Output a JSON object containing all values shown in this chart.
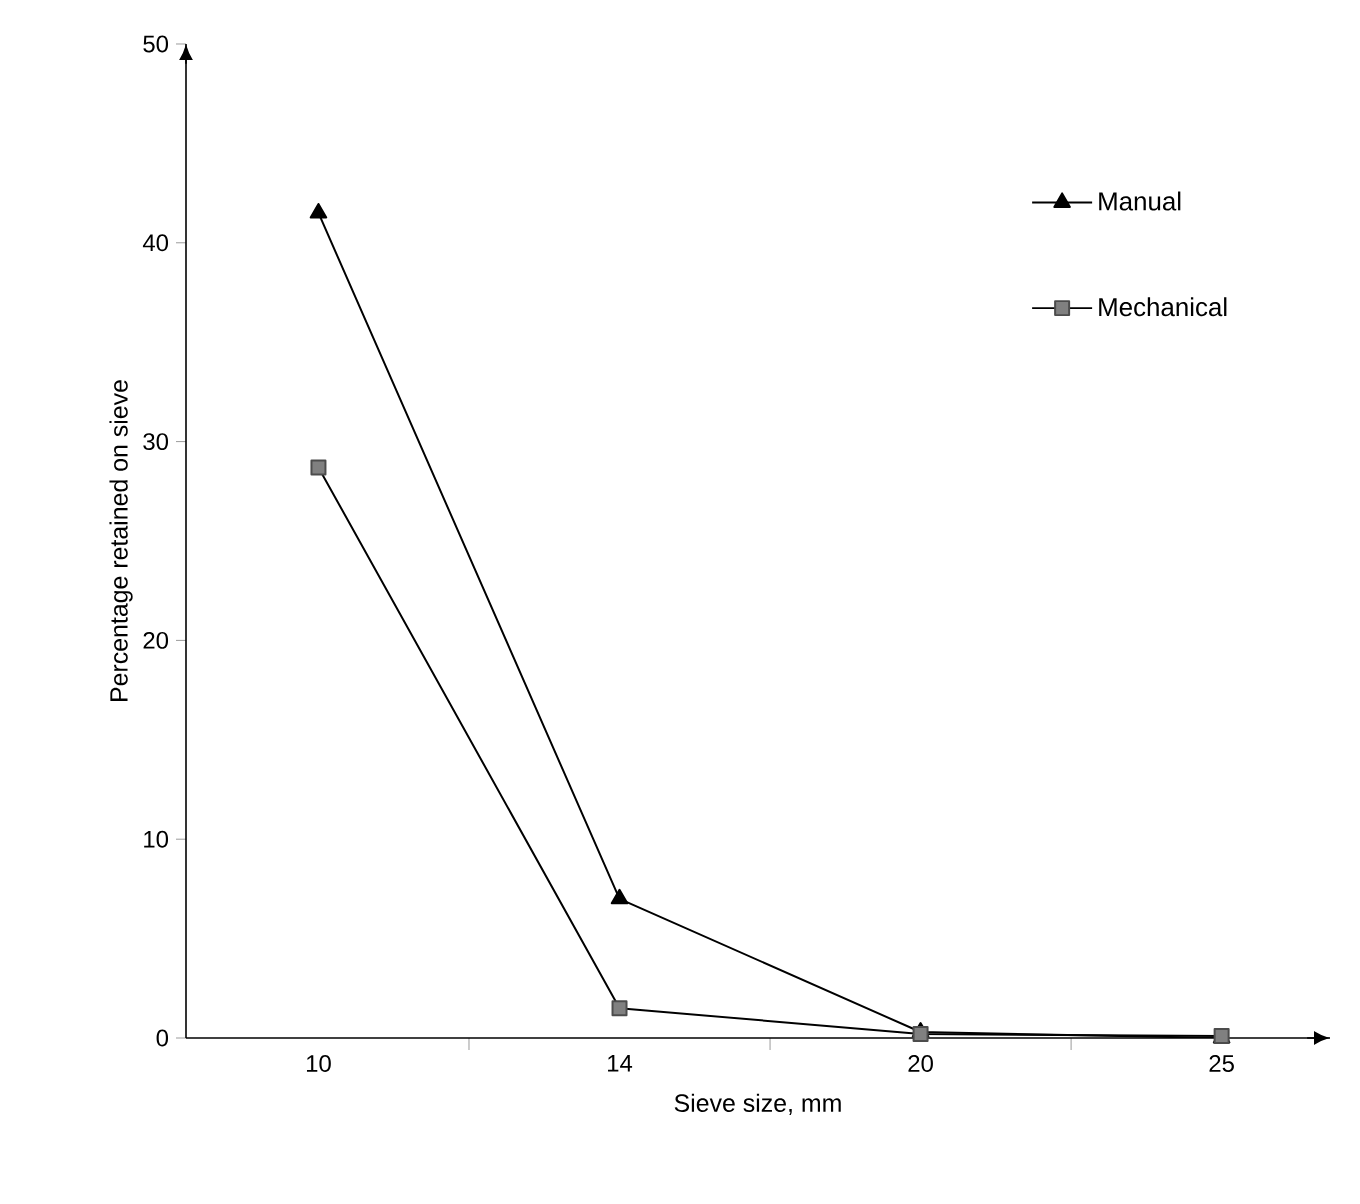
{
  "chart_data": {
    "type": "line",
    "xlabel": "Sieve size, mm",
    "ylabel": "Percentage retained on sieve",
    "categories": [
      "10",
      "14",
      "20",
      "25"
    ],
    "series": [
      {
        "name": "Manual",
        "color": "#000000",
        "marker": "triangle",
        "values": [
          41.5,
          7,
          0.3,
          0
        ]
      },
      {
        "name": "Mechanical",
        "color": "#808080",
        "marker": "square",
        "values": [
          28.7,
          1.5,
          0.2,
          0.1
        ]
      }
    ],
    "ylim": [
      0,
      50
    ],
    "yticks": [
      0,
      10,
      20,
      30,
      40,
      50
    ],
    "grid": false,
    "legend": "top right",
    "line_style": "solid"
  }
}
